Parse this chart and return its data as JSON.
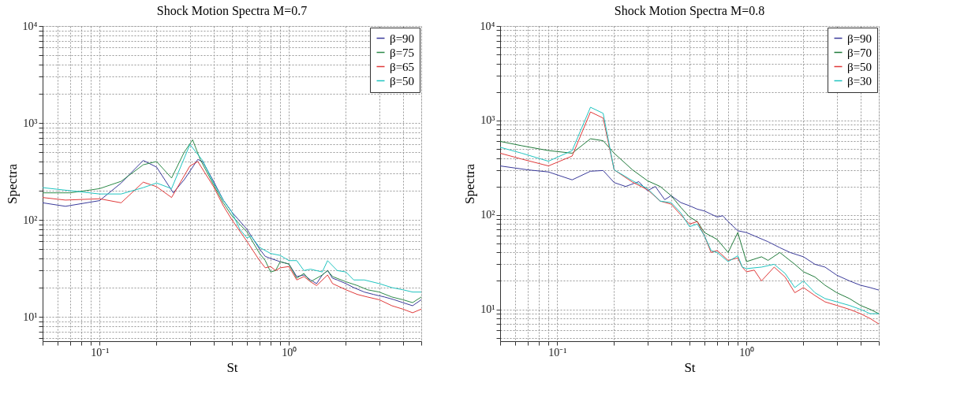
{
  "chart_data": [
    {
      "type": "line",
      "title": "Shock Motion Spectra M=0.7",
      "xlabel": "St",
      "ylabel": "Spectra",
      "log": "xy",
      "grid": true,
      "legend": "top right",
      "marker": "none",
      "line_style": "solid",
      "xlim": [
        0.05,
        5
      ],
      "ylim": [
        5.6,
        10000
      ],
      "xticks": [
        {
          "value": 0.05,
          "label": null
        },
        {
          "value": 0.06,
          "label": null
        },
        {
          "value": 0.07,
          "label": null
        },
        {
          "value": 0.08,
          "label": null
        },
        {
          "value": 0.09,
          "label": null
        },
        {
          "value": 0.1,
          "label": "10⁻¹"
        },
        {
          "value": 0.2,
          "label": null
        },
        {
          "value": 0.3,
          "label": null
        },
        {
          "value": 0.4,
          "label": null
        },
        {
          "value": 0.5,
          "label": null
        },
        {
          "value": 0.6,
          "label": null
        },
        {
          "value": 0.7,
          "label": null
        },
        {
          "value": 0.8,
          "label": null
        },
        {
          "value": 0.9,
          "label": null
        },
        {
          "value": 1,
          "label": "10⁰"
        },
        {
          "value": 2,
          "label": null
        },
        {
          "value": 3,
          "label": null
        },
        {
          "value": 4,
          "label": null
        },
        {
          "value": 5,
          "label": null
        }
      ],
      "yticks": [
        {
          "value": 6,
          "label": null
        },
        {
          "value": 7,
          "label": null
        },
        {
          "value": 8,
          "label": null
        },
        {
          "value": 9,
          "label": null
        },
        {
          "value": 10,
          "label": "10¹"
        },
        {
          "value": 20,
          "label": null
        },
        {
          "value": 30,
          "label": null
        },
        {
          "value": 40,
          "label": null
        },
        {
          "value": 50,
          "label": null
        },
        {
          "value": 60,
          "label": null
        },
        {
          "value": 70,
          "label": null
        },
        {
          "value": 80,
          "label": null
        },
        {
          "value": 90,
          "label": null
        },
        {
          "value": 100,
          "label": "10²"
        },
        {
          "value": 200,
          "label": null
        },
        {
          "value": 300,
          "label": null
        },
        {
          "value": 400,
          "label": null
        },
        {
          "value": 500,
          "label": null
        },
        {
          "value": 600,
          "label": null
        },
        {
          "value": 700,
          "label": null
        },
        {
          "value": 800,
          "label": null
        },
        {
          "value": 900,
          "label": null
        },
        {
          "value": 1000,
          "label": "10³"
        },
        {
          "value": 2000,
          "label": null
        },
        {
          "value": 3000,
          "label": null
        },
        {
          "value": 4000,
          "label": null
        },
        {
          "value": 5000,
          "label": null
        },
        {
          "value": 6000,
          "label": null
        },
        {
          "value": 7000,
          "label": null
        },
        {
          "value": 8000,
          "label": null
        },
        {
          "value": 9000,
          "label": null
        },
        {
          "value": 10000,
          "label": "10⁴"
        }
      ],
      "series": [
        {
          "name": "β=90",
          "color": "#3a3a9a",
          "x": [
            0.05,
            0.066,
            0.1,
            0.13,
            0.17,
            0.2,
            0.245,
            0.28,
            0.33,
            0.35,
            0.4,
            0.45,
            0.5,
            0.6,
            0.7,
            0.75,
            0.8,
            0.9,
            1.0,
            1.1,
            1.2,
            1.3,
            1.4,
            1.5,
            1.6,
            1.7,
            1.8,
            2.0,
            2.2,
            2.5,
            2.8,
            3.2,
            3.6,
            4.0,
            4.5,
            5
          ],
          "values": [
            150,
            138,
            158,
            240,
            410,
            350,
            190,
            260,
            420,
            400,
            250,
            160,
            120,
            80,
            50,
            42,
            40,
            37,
            35,
            26,
            27,
            24,
            22,
            27,
            30,
            25,
            24,
            22,
            20,
            18,
            17,
            16,
            15,
            14,
            13,
            15
          ]
        },
        {
          "name": "β=75",
          "color": "#2e8b4a",
          "x": [
            0.05,
            0.07,
            0.1,
            0.13,
            0.17,
            0.2,
            0.24,
            0.28,
            0.31,
            0.34,
            0.4,
            0.45,
            0.5,
            0.6,
            0.7,
            0.75,
            0.8,
            0.85,
            0.9,
            1.0,
            1.1,
            1.2,
            1.3,
            1.5,
            1.6,
            1.7,
            2.0,
            2.3,
            2.6,
            3.0,
            3.5,
            4.0,
            4.5,
            5
          ],
          "values": [
            190,
            190,
            210,
            250,
            370,
            400,
            270,
            500,
            670,
            420,
            230,
            150,
            110,
            75,
            45,
            38,
            29,
            30,
            37,
            35,
            25,
            28,
            23,
            27,
            30,
            26,
            23,
            21,
            19,
            18,
            16,
            15,
            14,
            16
          ]
        },
        {
          "name": "β=65",
          "color": "#e03a3a",
          "x": [
            0.05,
            0.066,
            0.1,
            0.13,
            0.17,
            0.2,
            0.24,
            0.3,
            0.33,
            0.4,
            0.45,
            0.5,
            0.6,
            0.7,
            0.75,
            0.8,
            0.85,
            0.9,
            1.0,
            1.1,
            1.2,
            1.3,
            1.4,
            1.6,
            1.7,
            2.0,
            2.3,
            2.6,
            3.0,
            3.5,
            4.0,
            4.5,
            5
          ],
          "values": [
            170,
            160,
            165,
            150,
            245,
            220,
            170,
            360,
            400,
            220,
            140,
            100,
            60,
            38,
            32,
            33,
            30,
            32,
            33,
            24,
            26,
            23,
            21,
            27,
            22,
            19,
            17,
            16,
            15,
            13,
            12,
            11,
            12
          ]
        },
        {
          "name": "β=50",
          "color": "#20c4c0",
          "x": [
            0.05,
            0.07,
            0.1,
            0.13,
            0.17,
            0.2,
            0.24,
            0.3,
            0.35,
            0.4,
            0.45,
            0.5,
            0.55,
            0.6,
            0.63,
            0.7,
            0.8,
            0.9,
            1.0,
            1.1,
            1.2,
            1.3,
            1.5,
            1.6,
            1.8,
            2.0,
            2.2,
            2.5,
            3.0,
            3.5,
            4.0,
            4.5,
            5
          ],
          "values": [
            215,
            200,
            185,
            185,
            215,
            240,
            210,
            600,
            410,
            240,
            160,
            120,
            80,
            65,
            68,
            52,
            45,
            43,
            38,
            38,
            30,
            31,
            29,
            38,
            30,
            29,
            24,
            24,
            22,
            20,
            19,
            18,
            18
          ]
        }
      ]
    },
    {
      "type": "line",
      "title": "Shock Motion Spectra M=0.8",
      "xlabel": "St",
      "ylabel": "Spectra",
      "log": "xy",
      "grid": true,
      "legend": "top right",
      "marker": "none",
      "line_style": "solid",
      "xlim": [
        0.05,
        5
      ],
      "ylim": [
        4.6,
        10000
      ],
      "xticks": [
        {
          "value": 0.05,
          "label": null
        },
        {
          "value": 0.06,
          "label": null
        },
        {
          "value": 0.07,
          "label": null
        },
        {
          "value": 0.08,
          "label": null
        },
        {
          "value": 0.09,
          "label": null
        },
        {
          "value": 0.1,
          "label": "10⁻¹"
        },
        {
          "value": 0.2,
          "label": null
        },
        {
          "value": 0.3,
          "label": null
        },
        {
          "value": 0.4,
          "label": null
        },
        {
          "value": 0.5,
          "label": null
        },
        {
          "value": 0.6,
          "label": null
        },
        {
          "value": 0.7,
          "label": null
        },
        {
          "value": 0.8,
          "label": null
        },
        {
          "value": 0.9,
          "label": null
        },
        {
          "value": 1,
          "label": "10⁰"
        },
        {
          "value": 2,
          "label": null
        },
        {
          "value": 3,
          "label": null
        },
        {
          "value": 4,
          "label": null
        },
        {
          "value": 5,
          "label": null
        }
      ],
      "yticks": [
        {
          "value": 5,
          "label": null
        },
        {
          "value": 6,
          "label": null
        },
        {
          "value": 7,
          "label": null
        },
        {
          "value": 8,
          "label": null
        },
        {
          "value": 9,
          "label": null
        },
        {
          "value": 10,
          "label": "10¹"
        },
        {
          "value": 20,
          "label": null
        },
        {
          "value": 30,
          "label": null
        },
        {
          "value": 40,
          "label": null
        },
        {
          "value": 50,
          "label": null
        },
        {
          "value": 60,
          "label": null
        },
        {
          "value": 70,
          "label": null
        },
        {
          "value": 80,
          "label": null
        },
        {
          "value": 90,
          "label": null
        },
        {
          "value": 100,
          "label": "10²"
        },
        {
          "value": 200,
          "label": null
        },
        {
          "value": 300,
          "label": null
        },
        {
          "value": 400,
          "label": null
        },
        {
          "value": 500,
          "label": null
        },
        {
          "value": 600,
          "label": null
        },
        {
          "value": 700,
          "label": null
        },
        {
          "value": 800,
          "label": null
        },
        {
          "value": 900,
          "label": null
        },
        {
          "value": 1000,
          "label": "10³"
        },
        {
          "value": 2000,
          "label": null
        },
        {
          "value": 3000,
          "label": null
        },
        {
          "value": 4000,
          "label": null
        },
        {
          "value": 5000,
          "label": null
        },
        {
          "value": 6000,
          "label": null
        },
        {
          "value": 7000,
          "label": null
        },
        {
          "value": 8000,
          "label": null
        },
        {
          "value": 9000,
          "label": null
        },
        {
          "value": 10000,
          "label": "10⁴"
        }
      ],
      "series": [
        {
          "name": "β=90",
          "color": "#3a3a9a",
          "x": [
            0.05,
            0.07,
            0.09,
            0.12,
            0.15,
            0.175,
            0.2,
            0.23,
            0.27,
            0.3,
            0.33,
            0.37,
            0.4,
            0.45,
            0.5,
            0.55,
            0.6,
            0.7,
            0.75,
            0.8,
            0.9,
            1.0,
            1.1,
            1.3,
            1.5,
            1.7,
            2.0,
            2.3,
            2.6,
            3.0,
            3.5,
            4.0,
            4.5,
            5
          ],
          "values": [
            330,
            300,
            285,
            235,
            290,
            295,
            220,
            200,
            225,
            180,
            200,
            145,
            160,
            135,
            125,
            115,
            110,
            95,
            98,
            85,
            68,
            65,
            60,
            52,
            45,
            40,
            36,
            30,
            28,
            23,
            20,
            18,
            17,
            16
          ]
        },
        {
          "name": "β=70",
          "color": "#1f7a3a",
          "x": [
            0.05,
            0.065,
            0.09,
            0.12,
            0.15,
            0.175,
            0.2,
            0.25,
            0.3,
            0.35,
            0.4,
            0.45,
            0.5,
            0.55,
            0.6,
            0.7,
            0.8,
            0.9,
            0.95,
            1.0,
            1.2,
            1.3,
            1.5,
            1.8,
            2.0,
            2.3,
            2.6,
            3.0,
            3.5,
            4.0,
            4.5,
            5
          ],
          "values": [
            600,
            540,
            480,
            450,
            640,
            610,
            450,
            300,
            230,
            200,
            160,
            120,
            95,
            85,
            65,
            55,
            40,
            65,
            45,
            32,
            36,
            33,
            40,
            30,
            25,
            22,
            18,
            15,
            13,
            11,
            10,
            9
          ]
        },
        {
          "name": "β=50",
          "color": "#e03a3a",
          "x": [
            0.05,
            0.065,
            0.09,
            0.12,
            0.15,
            0.175,
            0.2,
            0.25,
            0.3,
            0.35,
            0.4,
            0.45,
            0.5,
            0.55,
            0.6,
            0.65,
            0.7,
            0.8,
            0.9,
            0.95,
            1.0,
            1.1,
            1.2,
            1.4,
            1.6,
            1.8,
            2.0,
            2.3,
            2.6,
            3.0,
            3.5,
            4.0,
            4.5,
            5
          ],
          "values": [
            450,
            390,
            330,
            420,
            1230,
            1060,
            300,
            222,
            185,
            140,
            130,
            100,
            80,
            85,
            60,
            40,
            42,
            33,
            35,
            28,
            25,
            26,
            20,
            28,
            22,
            15,
            17,
            14,
            12,
            11,
            10,
            9,
            8,
            7
          ]
        },
        {
          "name": "β=30",
          "color": "#20c4c0",
          "x": [
            0.05,
            0.065,
            0.09,
            0.12,
            0.15,
            0.175,
            0.2,
            0.25,
            0.3,
            0.35,
            0.4,
            0.45,
            0.5,
            0.55,
            0.6,
            0.65,
            0.7,
            0.8,
            0.9,
            0.95,
            1.0,
            1.2,
            1.4,
            1.6,
            1.8,
            2.0,
            2.3,
            2.6,
            3.0,
            3.5,
            4.0,
            4.5,
            5
          ],
          "values": [
            520,
            450,
            370,
            480,
            1380,
            1190,
            300,
            230,
            190,
            140,
            135,
            105,
            75,
            80,
            60,
            42,
            40,
            32,
            37,
            28,
            27,
            28,
            30,
            24,
            17,
            20,
            15,
            13,
            12,
            11,
            10,
            9,
            9
          ]
        }
      ]
    }
  ]
}
